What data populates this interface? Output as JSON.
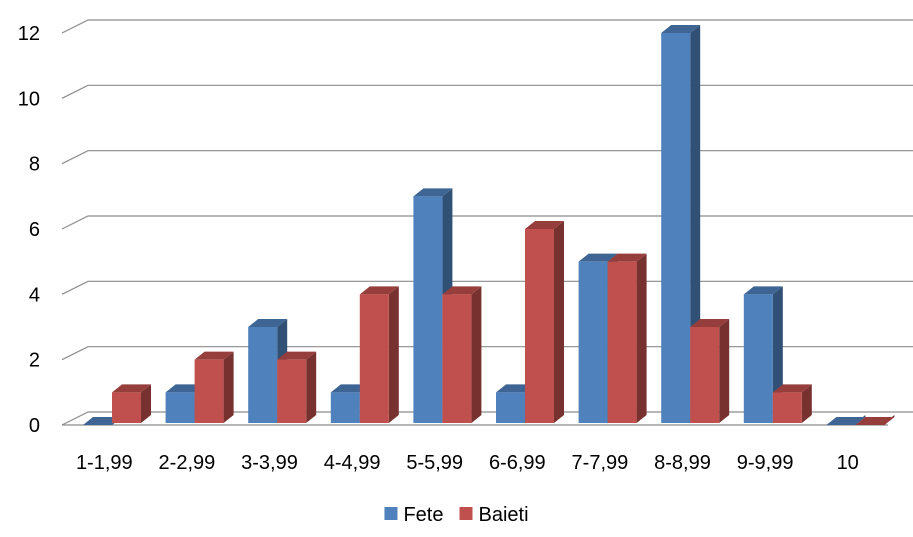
{
  "chart_data": {
    "type": "bar",
    "title": "",
    "xlabel": "",
    "ylabel": "",
    "categories": [
      "1-1,99",
      "2-2,99",
      "3-3,99",
      "4-4,99",
      "5-5,99",
      "6-6,99",
      "7-7,99",
      "8-8,99",
      "9-9,99",
      "10"
    ],
    "series": [
      {
        "name": "Fete",
        "color": "#4F81BD",
        "values": [
          0,
          1,
          3,
          1,
          7,
          1,
          5,
          12,
          4,
          0
        ]
      },
      {
        "name": "Baieti",
        "color": "#C0504D",
        "values": [
          1,
          2,
          2,
          4,
          4,
          6,
          5,
          3,
          1,
          0
        ]
      }
    ],
    "ylim": [
      0,
      12
    ],
    "yticks": [
      "0",
      "2",
      "4",
      "6",
      "8",
      "10",
      "12"
    ],
    "grid": true,
    "legend_position": "bottom-center",
    "style": "3d-clustered-column"
  }
}
